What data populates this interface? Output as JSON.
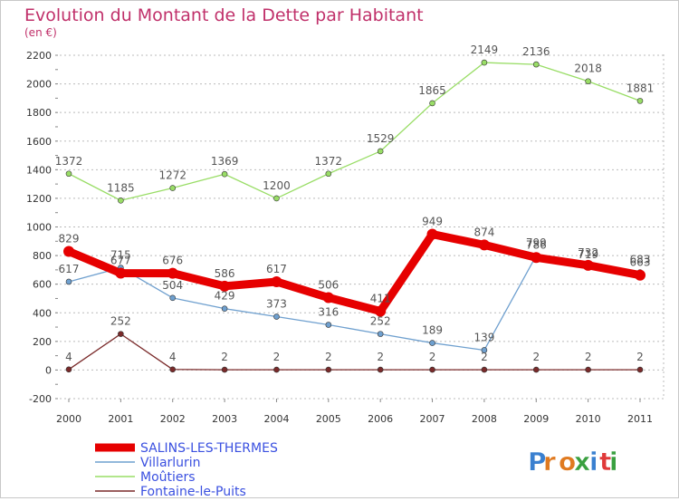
{
  "title": "Evolution du Montant de la Dette par Habitant",
  "subtitle": "(en €)",
  "logo": "Proxiti",
  "colors": {
    "title": "#c0306a",
    "legend_text": "#3a50e0",
    "grid": "#bbbbbb",
    "plot_bg": "#ffffff"
  },
  "chart_data": {
    "type": "line",
    "title": "Evolution du Montant de la Dette par Habitant",
    "subtitle": "(en €)",
    "x": [
      "2000",
      "2001",
      "2002",
      "2003",
      "2004",
      "2005",
      "2006",
      "2007",
      "2008",
      "2009",
      "2010",
      "2011"
    ],
    "ylim": [
      -200,
      2200
    ],
    "yticks": [
      -200,
      0,
      200,
      400,
      600,
      800,
      1000,
      1200,
      1400,
      1600,
      1800,
      2000,
      2200
    ],
    "grid": "horizontal-dashed",
    "legend_position": "bottom-left",
    "series": [
      {
        "name": "SALINS-LES-THERMES",
        "color": "#e60000",
        "values": [
          829,
          677,
          676,
          586,
          617,
          506,
          411,
          949,
          874,
          786,
          732,
          663
        ],
        "labels": [
          "829",
          "677",
          "676",
          "586",
          "617",
          "506",
          "411",
          "949",
          "874",
          "786",
          "732",
          "663"
        ],
        "bold": true
      },
      {
        "name": "Villarlurin",
        "color": "#6fa0cf",
        "values": [
          617,
          715,
          504,
          429,
          373,
          316,
          252,
          189,
          139,
          799,
          719,
          683
        ],
        "labels": [
          "617",
          "715",
          "504",
          "429",
          "373",
          "316",
          "252",
          "189",
          "139",
          "799",
          "719",
          "683"
        ],
        "bold": false
      },
      {
        "name": "Moûtiers",
        "color": "#99dd66",
        "values": [
          1372,
          1185,
          1272,
          1369,
          1200,
          1372,
          1529,
          1865,
          2149,
          2136,
          2018,
          1881
        ],
        "labels": [
          "1372",
          "1185",
          "1272",
          "1369",
          "1200",
          "1372",
          "1529",
          "1865",
          "2149",
          "2136",
          "2018",
          "1881"
        ],
        "bold": false
      },
      {
        "name": "Fontaine-le-Puits",
        "color": "#7a2a2a",
        "values": [
          4,
          252,
          4,
          2,
          2,
          2,
          2,
          2,
          2,
          2,
          2,
          2
        ],
        "labels": [
          "4",
          "252",
          "4",
          "2",
          "2",
          "2",
          "2",
          "2",
          "2",
          "2",
          "2",
          "2"
        ],
        "bold": false
      }
    ]
  }
}
